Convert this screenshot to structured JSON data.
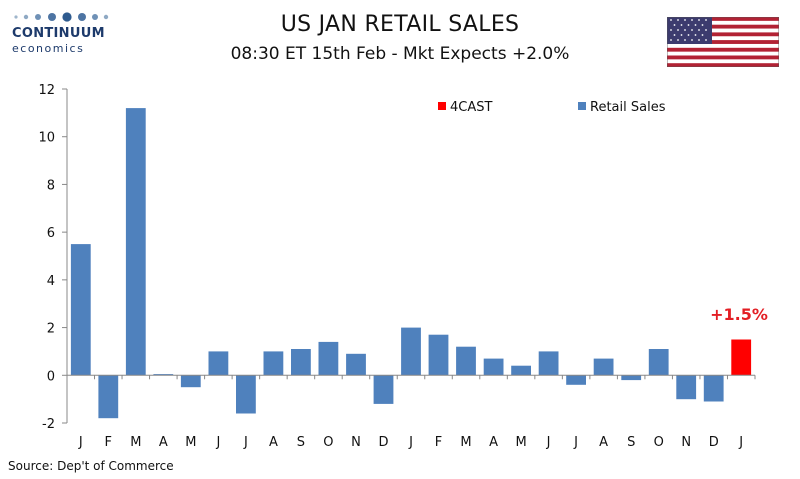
{
  "header": {
    "logo_text": "CONTINUUM",
    "logo_sub": "economics",
    "title": "US JAN RETAIL SALES",
    "subtitle": "08:30 ET 15th Feb - Mkt Expects +2.0%"
  },
  "source": "Source: Dep't of Commerce",
  "colors": {
    "retail": "#4f81bd",
    "forecast": "#ff0000",
    "annotation": "#e31e24"
  },
  "chart_data": {
    "type": "bar",
    "title": "US JAN RETAIL SALES",
    "subtitle": "08:30 ET 15th Feb - Mkt Expects +2.0%",
    "xlabel": "",
    "ylabel": "",
    "ylim": [
      -2,
      12
    ],
    "yticks": [
      -2,
      0,
      2,
      4,
      6,
      8,
      10,
      12
    ],
    "grid": false,
    "legend_position": "top-right",
    "categories": [
      "J",
      "F",
      "M",
      "A",
      "M",
      "J",
      "J",
      "A",
      "S",
      "O",
      "N",
      "D",
      "J",
      "F",
      "M",
      "A",
      "M",
      "J",
      "J",
      "A",
      "S",
      "O",
      "N",
      "D",
      "J"
    ],
    "series": [
      {
        "name": "Retail Sales",
        "color": "#4f81bd",
        "values": [
          5.5,
          -1.8,
          11.2,
          0.05,
          -0.5,
          1.0,
          -1.6,
          1.0,
          1.1,
          1.4,
          0.9,
          -1.2,
          2.0,
          1.7,
          1.2,
          0.7,
          0.4,
          1.0,
          -0.4,
          0.7,
          -0.2,
          1.1,
          -1.0,
          -1.1,
          null
        ]
      },
      {
        "name": "4CAST",
        "color": "#ff0000",
        "values": [
          null,
          null,
          null,
          null,
          null,
          null,
          null,
          null,
          null,
          null,
          null,
          null,
          null,
          null,
          null,
          null,
          null,
          null,
          null,
          null,
          null,
          null,
          null,
          null,
          1.5
        ]
      }
    ],
    "legend": [
      "4CAST",
      "Retail Sales"
    ],
    "annotations": [
      {
        "text": "+1.5%",
        "category_index": 24,
        "value": 1.5
      }
    ]
  }
}
